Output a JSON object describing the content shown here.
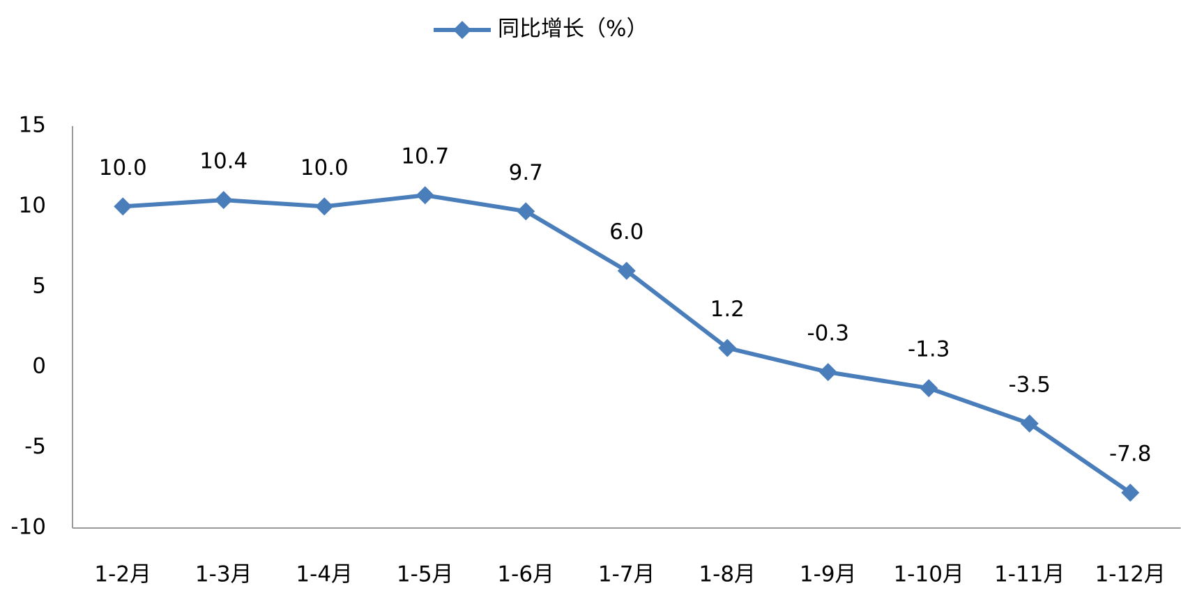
{
  "chart_data": {
    "type": "line",
    "categories": [
      "1-2月",
      "1-3月",
      "1-4月",
      "1-5月",
      "1-6月",
      "1-7月",
      "1-8月",
      "1-9月",
      "1-10月",
      "1-11月",
      "1-12月"
    ],
    "series": [
      {
        "name": "同比增长（%）",
        "color": "#4a7ebb",
        "values": [
          10.0,
          10.4,
          10.0,
          10.7,
          9.7,
          6.0,
          1.2,
          -0.3,
          -1.3,
          -3.5,
          -7.8
        ],
        "value_labels": [
          "10.0",
          "10.4",
          "10.0",
          "10.7",
          "9.7",
          "6.0",
          "1.2",
          "-0.3",
          "-1.3",
          "-3.5",
          "-7.8"
        ]
      }
    ],
    "ylim": [
      -10,
      15
    ],
    "yticks": [
      -10,
      -5,
      0,
      5,
      10,
      15
    ],
    "grid": false,
    "legend": "top"
  }
}
